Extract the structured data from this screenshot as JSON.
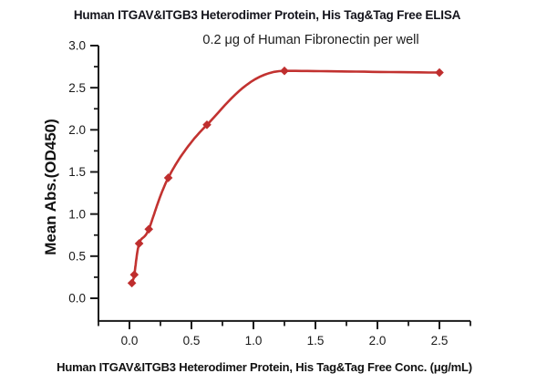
{
  "chart": {
    "title": "Human ITGAV&ITGB3 Heterodimer Protein, His Tag&Tag Free ELISA",
    "subtitle": "0.2 μg of Human Fibronectin per well",
    "x_axis_title": "Human ITGAV&ITGB3 Heterodimer Protein, His Tag&Tag Free Conc. (μg/mL)",
    "y_axis_title": "Mean Abs.(OD450)",
    "text_color": "#161616",
    "axis_color": "#1a1a1a",
    "curve_color": "#c23230",
    "marker_color": "#bf2e2e"
  },
  "chart_data": {
    "type": "scatter",
    "title": "Human ITGAV&ITGB3 Heterodimer Protein, His Tag&Tag Free ELISA",
    "subtitle": "0.2 μg of Human Fibronectin per well",
    "xlabel": "Human ITGAV&ITGB3 Heterodimer Protein, His Tag&Tag Free Conc. (μg/mL)",
    "ylabel": "Mean Abs.(OD450)",
    "x": [
      0.0195,
      0.039,
      0.078,
      0.156,
      0.313,
      0.625,
      1.25,
      2.5
    ],
    "y": [
      0.18,
      0.28,
      0.65,
      0.82,
      1.43,
      2.06,
      2.7,
      2.68
    ],
    "curve": "smooth sigmoidal fit through data points",
    "marker": "diamond",
    "xlim": [
      -0.25,
      2.75
    ],
    "ylim": [
      -0.27,
      3.0
    ],
    "x_major_ticks": [
      0,
      0.5,
      1,
      1.5,
      2,
      2.5
    ],
    "x_tick_labels": [
      "0.0",
      "0.5",
      "1.0",
      "1.5",
      "2.0",
      "2.5"
    ],
    "x_minor_ticks": [
      -0.25,
      0.25,
      0.75,
      1.25,
      1.75,
      2.25,
      2.75
    ],
    "y_major_ticks": [
      0,
      0.5,
      1,
      1.5,
      2,
      2.5,
      3
    ],
    "y_tick_labels": [
      "0.0",
      "0.5",
      "1.0",
      "1.5",
      "2.0",
      "2.5",
      "3.0"
    ],
    "y_minor_ticks": [
      0.25,
      0.75,
      1.25,
      1.75,
      2.25,
      2.75
    ],
    "grid": false,
    "legend": false
  }
}
